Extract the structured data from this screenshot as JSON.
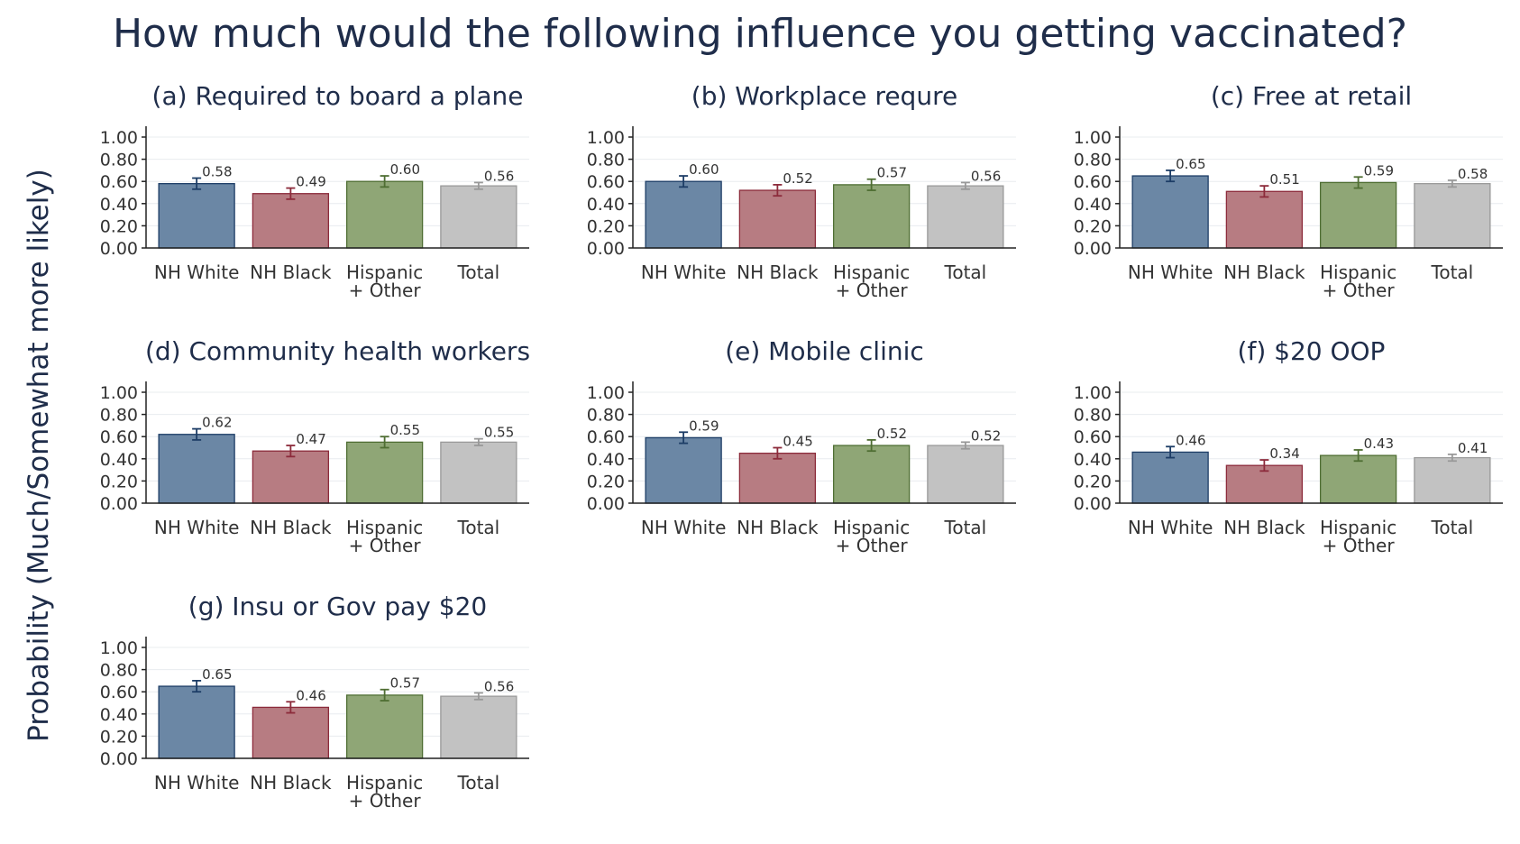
{
  "title": "How much would the following influence you getting vaccinated?",
  "ylabel": "Probability (Much/Somewhat more likely)",
  "colors": {
    "NH White": {
      "fill": "#6b87a5",
      "stroke": "#1d3d66",
      "err": "#1d3d66"
    },
    "NH Black": {
      "fill": "#b77c82",
      "stroke": "#8c2b3b",
      "err": "#8c2b3b"
    },
    "Hispanic + Other": {
      "fill": "#8fa676",
      "stroke": "#4f6e33",
      "err": "#4f6e33"
    },
    "Total": {
      "fill": "#c2c2c2",
      "stroke": "#9a9a9a",
      "err": "#999999"
    }
  },
  "chart_data": [
    {
      "type": "bar",
      "title": "(a) Required to board a plane",
      "categories": [
        "NH White",
        "NH Black",
        "Hispanic + Other",
        "Total"
      ],
      "category_lines": [
        [
          "NH White"
        ],
        [
          "NH Black"
        ],
        [
          "Hispanic",
          "+ Other"
        ],
        [
          "Total"
        ]
      ],
      "values": [
        0.58,
        0.49,
        0.6,
        0.56
      ],
      "labels": [
        "0.58",
        "0.49",
        "0.60",
        "0.56"
      ],
      "errors": [
        0.05,
        0.05,
        0.05,
        0.03
      ],
      "yticks": [
        "0.00",
        "0.20",
        "0.40",
        "0.60",
        "0.80",
        "1.00"
      ],
      "ylim": [
        0,
        1.0
      ]
    },
    {
      "type": "bar",
      "title": "(b) Workplace requre",
      "categories": [
        "NH White",
        "NH Black",
        "Hispanic + Other",
        "Total"
      ],
      "category_lines": [
        [
          "NH White"
        ],
        [
          "NH Black"
        ],
        [
          "Hispanic",
          "+ Other"
        ],
        [
          "Total"
        ]
      ],
      "values": [
        0.6,
        0.52,
        0.57,
        0.56
      ],
      "labels": [
        "0.60",
        "0.52",
        "0.57",
        "0.56"
      ],
      "errors": [
        0.05,
        0.05,
        0.05,
        0.03
      ],
      "yticks": [
        "0.00",
        "0.20",
        "0.40",
        "0.60",
        "0.80",
        "1.00"
      ],
      "ylim": [
        0,
        1.0
      ]
    },
    {
      "type": "bar",
      "title": "(c) Free at retail",
      "categories": [
        "NH White",
        "NH Black",
        "Hispanic + Other",
        "Total"
      ],
      "category_lines": [
        [
          "NH White"
        ],
        [
          "NH Black"
        ],
        [
          "Hispanic",
          "+ Other"
        ],
        [
          "Total"
        ]
      ],
      "values": [
        0.65,
        0.51,
        0.59,
        0.58
      ],
      "labels": [
        "0.65",
        "0.51",
        "0.59",
        "0.58"
      ],
      "errors": [
        0.05,
        0.05,
        0.05,
        0.03
      ],
      "yticks": [
        "0.00",
        "0.20",
        "0.40",
        "0.60",
        "0.80",
        "1.00"
      ],
      "ylim": [
        0,
        1.0
      ]
    },
    {
      "type": "bar",
      "title": "(d) Community health workers",
      "categories": [
        "NH White",
        "NH Black",
        "Hispanic + Other",
        "Total"
      ],
      "category_lines": [
        [
          "NH White"
        ],
        [
          "NH Black"
        ],
        [
          "Hispanic",
          "+ Other"
        ],
        [
          "Total"
        ]
      ],
      "values": [
        0.62,
        0.47,
        0.55,
        0.55
      ],
      "labels": [
        "0.62",
        "0.47",
        "0.55",
        "0.55"
      ],
      "errors": [
        0.05,
        0.05,
        0.05,
        0.03
      ],
      "yticks": [
        "0.00",
        "0.20",
        "0.40",
        "0.60",
        "0.80",
        "1.00"
      ],
      "ylim": [
        0,
        1.0
      ]
    },
    {
      "type": "bar",
      "title": "(e) Mobile clinic",
      "categories": [
        "NH White",
        "NH Black",
        "Hispanic + Other",
        "Total"
      ],
      "category_lines": [
        [
          "NH White"
        ],
        [
          "NH Black"
        ],
        [
          "Hispanic",
          "+ Other"
        ],
        [
          "Total"
        ]
      ],
      "values": [
        0.59,
        0.45,
        0.52,
        0.52
      ],
      "labels": [
        "0.59",
        "0.45",
        "0.52",
        "0.52"
      ],
      "errors": [
        0.05,
        0.05,
        0.05,
        0.03
      ],
      "yticks": [
        "0.00",
        "0.20",
        "0.40",
        "0.60",
        "0.80",
        "1.00"
      ],
      "ylim": [
        0,
        1.0
      ]
    },
    {
      "type": "bar",
      "title": "(f) $20 OOP",
      "categories": [
        "NH White",
        "NH Black",
        "Hispanic + Other",
        "Total"
      ],
      "category_lines": [
        [
          "NH White"
        ],
        [
          "NH Black"
        ],
        [
          "Hispanic",
          "+ Other"
        ],
        [
          "Total"
        ]
      ],
      "values": [
        0.46,
        0.34,
        0.43,
        0.41
      ],
      "labels": [
        "0.46",
        "0.34",
        "0.43",
        "0.41"
      ],
      "errors": [
        0.05,
        0.05,
        0.05,
        0.03
      ],
      "yticks": [
        "0.00",
        "0.20",
        "0.40",
        "0.60",
        "0.80",
        "1.00"
      ],
      "ylim": [
        0,
        1.0
      ]
    },
    {
      "type": "bar",
      "title": "(g) Insu or Gov pay $20",
      "categories": [
        "NH White",
        "NH Black",
        "Hispanic + Other",
        "Total"
      ],
      "category_lines": [
        [
          "NH White"
        ],
        [
          "NH Black"
        ],
        [
          "Hispanic",
          "+ Other"
        ],
        [
          "Total"
        ]
      ],
      "values": [
        0.65,
        0.46,
        0.57,
        0.56
      ],
      "labels": [
        "0.65",
        "0.46",
        "0.57",
        "0.56"
      ],
      "errors": [
        0.05,
        0.05,
        0.05,
        0.03
      ],
      "yticks": [
        "0.00",
        "0.20",
        "0.40",
        "0.60",
        "0.80",
        "1.00"
      ],
      "ylim": [
        0,
        1.0
      ]
    }
  ]
}
